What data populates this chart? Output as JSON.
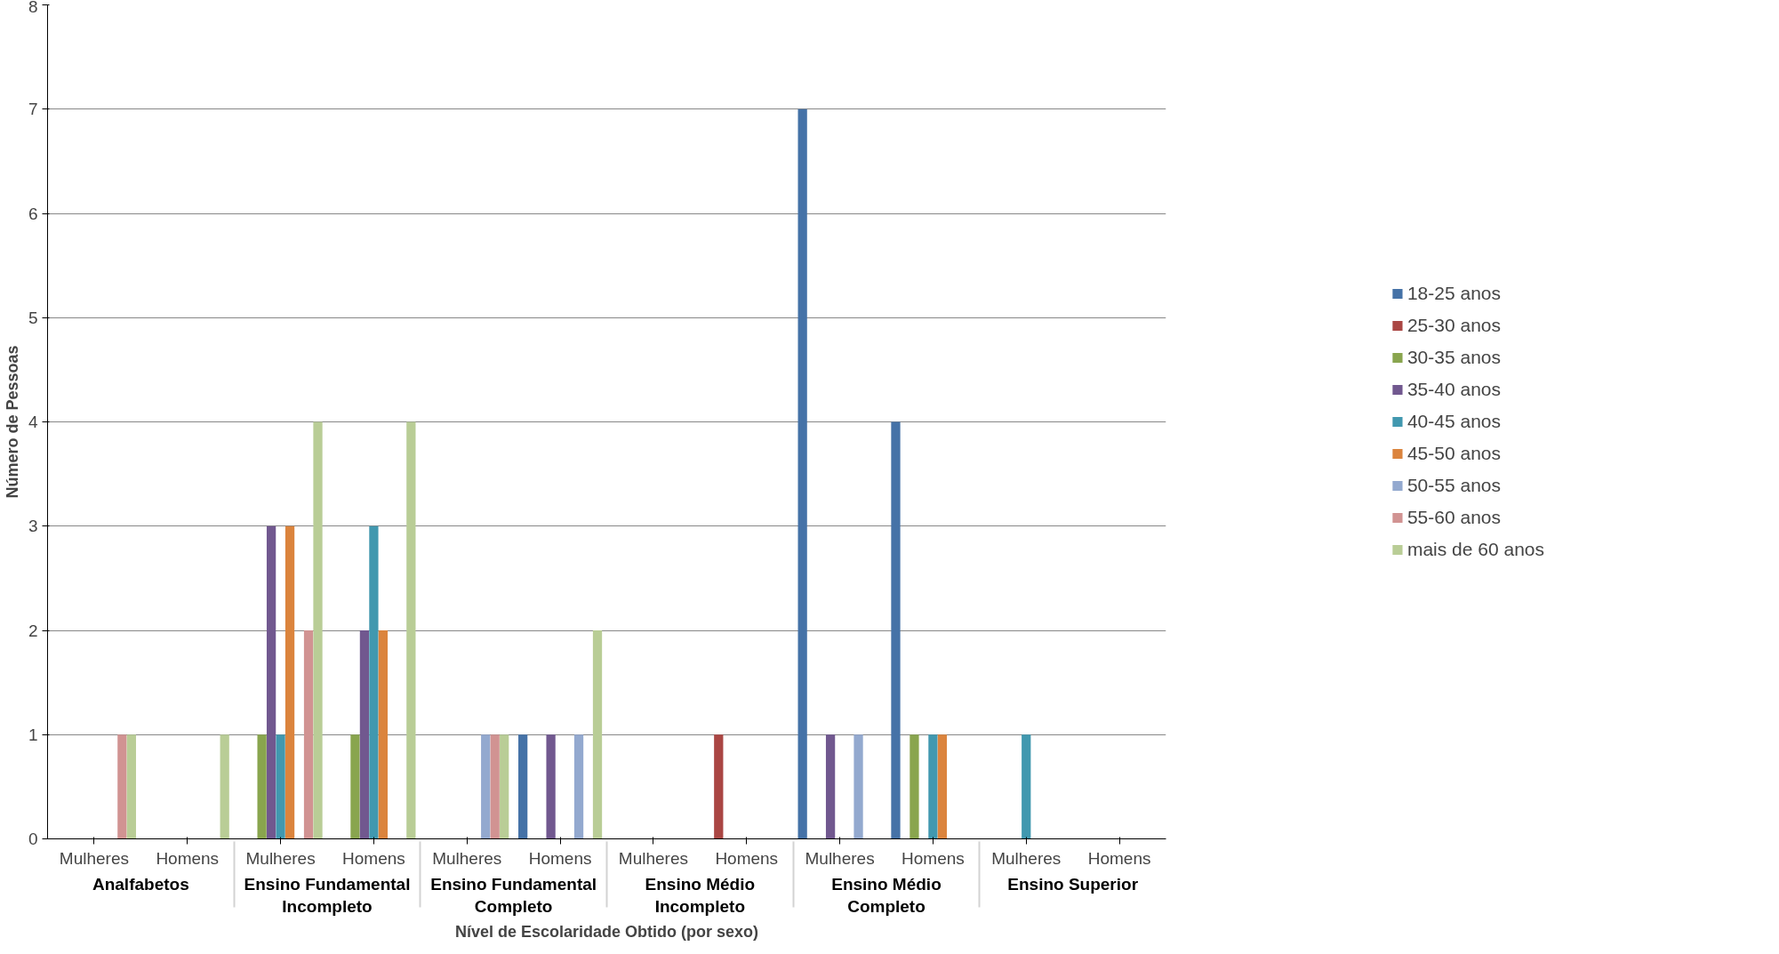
{
  "chart_data": {
    "type": "bar",
    "xlabel": "Nível de Escolaridade Obtido (por sexo)",
    "ylabel": "Número de Pessoas",
    "categories": [
      "Mulheres",
      "Homens",
      "Mulheres",
      "Homens",
      "Mulheres",
      "Homens",
      "Mulheres",
      "Homens",
      "Mulheres",
      "Homens",
      "Mulheres",
      "Homens"
    ],
    "annotations": [
      "Analfabetos",
      "Ensino Fundamental\nIncompleto",
      "Ensino Fundamental\nCompleto",
      "Ensino Médio\nIncompleto",
      "Ensino Médio\nCompleto",
      "Ensino Superior"
    ],
    "series": [
      {
        "name": "18-25 anos",
        "color": "#4572a7",
        "values": [
          0,
          0,
          0,
          0,
          0,
          1,
          0,
          0,
          7,
          4,
          0,
          0
        ]
      },
      {
        "name": "25-30 anos",
        "color": "#aa4643",
        "values": [
          0,
          0,
          0,
          0,
          0,
          0,
          0,
          1,
          0,
          0,
          0,
          0
        ]
      },
      {
        "name": "30-35 anos",
        "color": "#89a54e",
        "values": [
          0,
          0,
          1,
          1,
          0,
          0,
          0,
          0,
          0,
          1,
          0,
          0
        ]
      },
      {
        "name": "35-40 anos",
        "color": "#71588f",
        "values": [
          0,
          0,
          3,
          2,
          0,
          1,
          0,
          0,
          1,
          0,
          0,
          0
        ]
      },
      {
        "name": "40-45 anos",
        "color": "#4198af",
        "values": [
          0,
          0,
          1,
          3,
          0,
          0,
          0,
          0,
          0,
          1,
          1,
          0
        ]
      },
      {
        "name": "45-50 anos",
        "color": "#db843d",
        "values": [
          0,
          0,
          3,
          2,
          0,
          0,
          0,
          0,
          0,
          1,
          0,
          0
        ]
      },
      {
        "name": "50-55 anos",
        "color": "#93a9cf",
        "values": [
          0,
          0,
          0,
          0,
          1,
          1,
          0,
          0,
          1,
          0,
          0,
          0
        ]
      },
      {
        "name": "55-60 anos",
        "color": "#d19392",
        "values": [
          1,
          0,
          2,
          0,
          1,
          0,
          0,
          0,
          0,
          0,
          0,
          0
        ]
      },
      {
        "name": "mais de 60 anos",
        "color": "#b9cd96",
        "values": [
          1,
          1,
          4,
          4,
          1,
          2,
          0,
          0,
          0,
          0,
          0,
          0
        ]
      }
    ],
    "ylim": [
      0,
      8
    ],
    "yticks": [
      0,
      1,
      2,
      3,
      4,
      5,
      6,
      7,
      8
    ],
    "grid": "y",
    "legend": "right"
  }
}
